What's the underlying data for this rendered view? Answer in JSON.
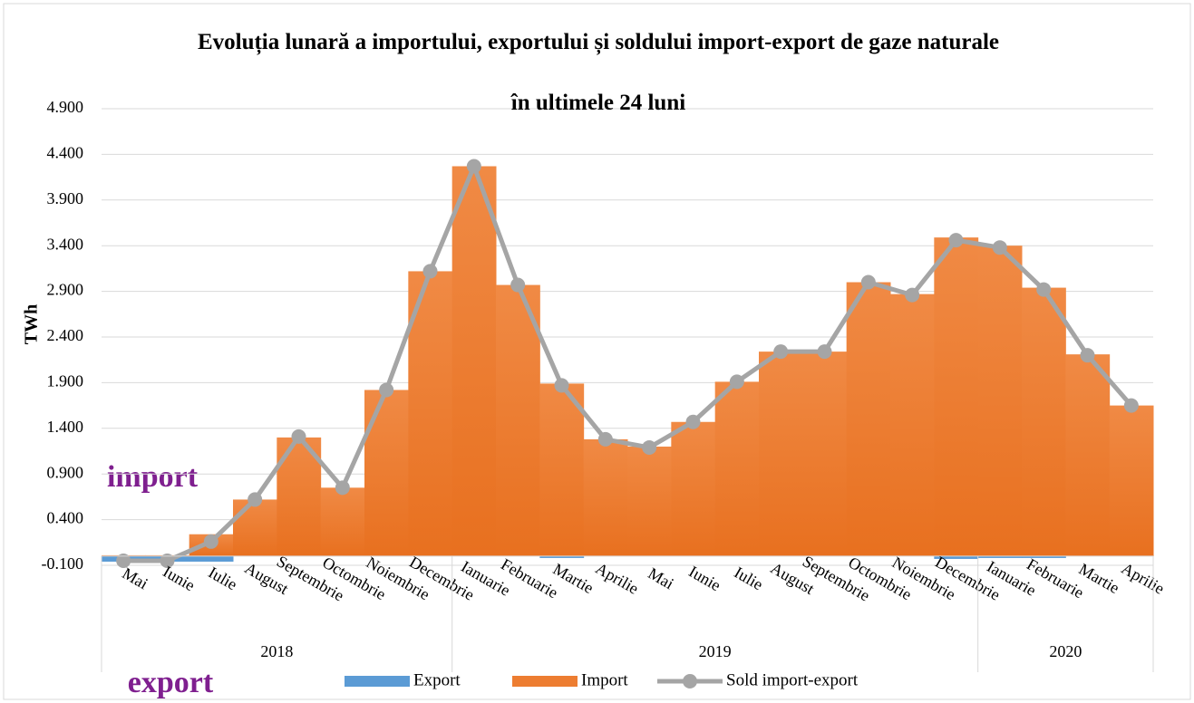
{
  "chart_data": {
    "type": "bar_line",
    "title": "Evoluția lunară a importului, exportului și soldului import-export de gaze naturale",
    "subtitle": "în ultimele 24 luni",
    "y_label": "TWh",
    "annotations": [
      "import",
      "export"
    ],
    "year_groups": [
      {
        "name": "2018",
        "categories": [
          "Mai",
          "Iunie",
          "Iulie",
          "August",
          "Septembrie",
          "Octombrie",
          "Noiembrie",
          "Decembrie"
        ]
      },
      {
        "name": "2019",
        "categories": [
          "Ianuarie",
          "Februarie",
          "Martie",
          "Aprilie",
          "Mai",
          "Iunie",
          "Iulie",
          "August",
          "Septembrie",
          "Octombrie",
          "Noiembrie",
          "Decembrie"
        ]
      },
      {
        "name": "2020",
        "categories": [
          "Ianuarie",
          "Februarie",
          "Martie",
          "Aprilie"
        ]
      }
    ],
    "series": [
      {
        "name": "Export",
        "type": "bar",
        "color": "#5b9bd5",
        "values": [
          -0.06,
          -0.06,
          -0.06,
          0,
          0,
          0,
          0,
          0,
          0,
          0,
          -0.02,
          0,
          0,
          0,
          0,
          0,
          0,
          0,
          0,
          -0.03,
          -0.02,
          -0.02,
          0,
          0
        ]
      },
      {
        "name": "Import",
        "type": "bar",
        "color": "#ed7d31",
        "values": [
          0.01,
          0.01,
          0.24,
          0.62,
          1.3,
          0.75,
          1.82,
          3.12,
          4.27,
          2.97,
          1.89,
          1.28,
          1.2,
          1.47,
          1.91,
          2.24,
          2.24,
          3.0,
          2.87,
          3.49,
          3.4,
          2.94,
          2.21,
          1.65
        ]
      },
      {
        "name": "Sold import-export",
        "type": "line",
        "color": "#a5a5a5",
        "values": [
          -0.05,
          -0.05,
          0.16,
          0.62,
          1.31,
          0.75,
          1.82,
          3.12,
          4.27,
          2.97,
          1.87,
          1.28,
          1.19,
          1.47,
          1.91,
          2.24,
          2.24,
          3.0,
          2.86,
          3.46,
          3.38,
          2.92,
          2.2,
          1.65
        ]
      }
    ],
    "ylim": [
      -0.1,
      4.9
    ],
    "yticks": [
      {
        "value": -0.1,
        "label": "-0.100"
      },
      {
        "value": 0.4,
        "label": "0.400"
      },
      {
        "value": 0.9,
        "label": "0.900"
      },
      {
        "value": 1.4,
        "label": "1.400"
      },
      {
        "value": 1.9,
        "label": "1.900"
      },
      {
        "value": 2.4,
        "label": "2.400"
      },
      {
        "value": 2.9,
        "label": "2.900"
      },
      {
        "value": 3.4,
        "label": "3.400"
      },
      {
        "value": 3.9,
        "label": "3.900"
      },
      {
        "value": 4.4,
        "label": "4.400"
      },
      {
        "value": 4.9,
        "label": "4.900"
      }
    ],
    "grid": true
  }
}
